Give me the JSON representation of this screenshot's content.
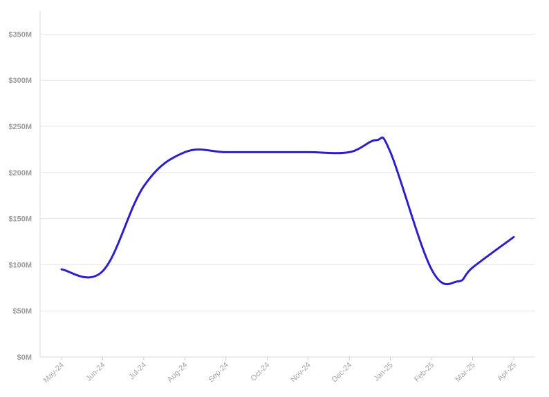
{
  "chart_data": {
    "type": "line",
    "title": "",
    "xlabel": "",
    "ylabel": "",
    "categories": [
      "May-24",
      "Jun-24",
      "Jul-24",
      "Aug-24",
      "Sep-24",
      "Oct-24",
      "Nov-24",
      "Dec-24",
      "Jan-25",
      "Feb-25",
      "Mar-25",
      "Apr-25"
    ],
    "series": [
      {
        "color": "#2a1fc8",
        "x": [
          "May-24",
          "Jun-24",
          "Jul-24",
          "Aug-24",
          "Sep-24",
          "Oct-24",
          "Nov-24",
          "Dec-24",
          "Jan-25",
          "Feb-25",
          "Mar-25",
          "Apr-25"
        ],
        "values": [
          95,
          93,
          185,
          222,
          222,
          222,
          222,
          222,
          222,
          95,
          97,
          130
        ],
        "path_points": [
          [
            "May-24",
            95
          ],
          [
            "Jun-24",
            93
          ],
          [
            "Jul-24",
            185
          ],
          [
            "Aug-24",
            222
          ],
          [
            "Sep-24",
            222
          ],
          [
            "Oct-24",
            222
          ],
          [
            "Nov-24",
            222
          ],
          [
            "Dec-24",
            222
          ],
          [
            "Dec-24+",
            235
          ],
          [
            "Jan-25",
            222
          ],
          [
            "Feb-25",
            95
          ],
          [
            "Feb-25+",
            82
          ],
          [
            "Mar-25",
            97
          ],
          [
            "Apr-25",
            130
          ]
        ]
      }
    ],
    "ylim": [
      0,
      375
    ],
    "yticks": [
      0,
      50,
      100,
      150,
      200,
      250,
      300,
      350
    ],
    "ytick_labels": [
      "$0M",
      "$50M",
      "$100M",
      "$150M",
      "$200M",
      "$250M",
      "$300M",
      "$350M"
    ],
    "grid": true,
    "legend": "none"
  }
}
